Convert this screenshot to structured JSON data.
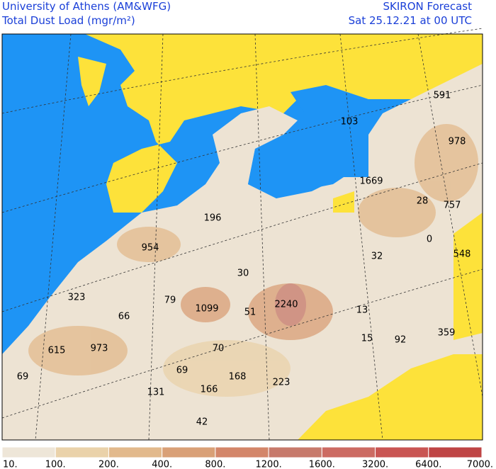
{
  "header": {
    "title": "University of Athens (AM&WFG)",
    "subtitle": "Total Dust Load (mgr/m²)",
    "model": "SKIRON Forecast",
    "time": "Sat 25.12.21 at 00 UTC"
  },
  "map": {
    "labels": [
      "591",
      "103",
      "978",
      "1669",
      "28",
      "757",
      "0",
      "548",
      "196",
      "954",
      "32",
      "30",
      "323",
      "79",
      "1099",
      "51",
      "2240",
      "13",
      "66",
      "15",
      "92",
      "359",
      "615",
      "973",
      "70",
      "69",
      "69",
      "168",
      "223",
      "131",
      "166",
      "42"
    ]
  },
  "colorbar": {
    "labels": [
      "10.",
      "100.",
      "200.",
      "400.",
      "800.",
      "1200.",
      "1600.",
      "3200.",
      "6400.",
      "7000."
    ],
    "colors": [
      "#eee6d8",
      "#ead2aa",
      "#e2b98c",
      "#d9a077",
      "#d3866a",
      "#c77a6c",
      "#cc6b63",
      "#c95553",
      "#bf4545"
    ]
  }
}
